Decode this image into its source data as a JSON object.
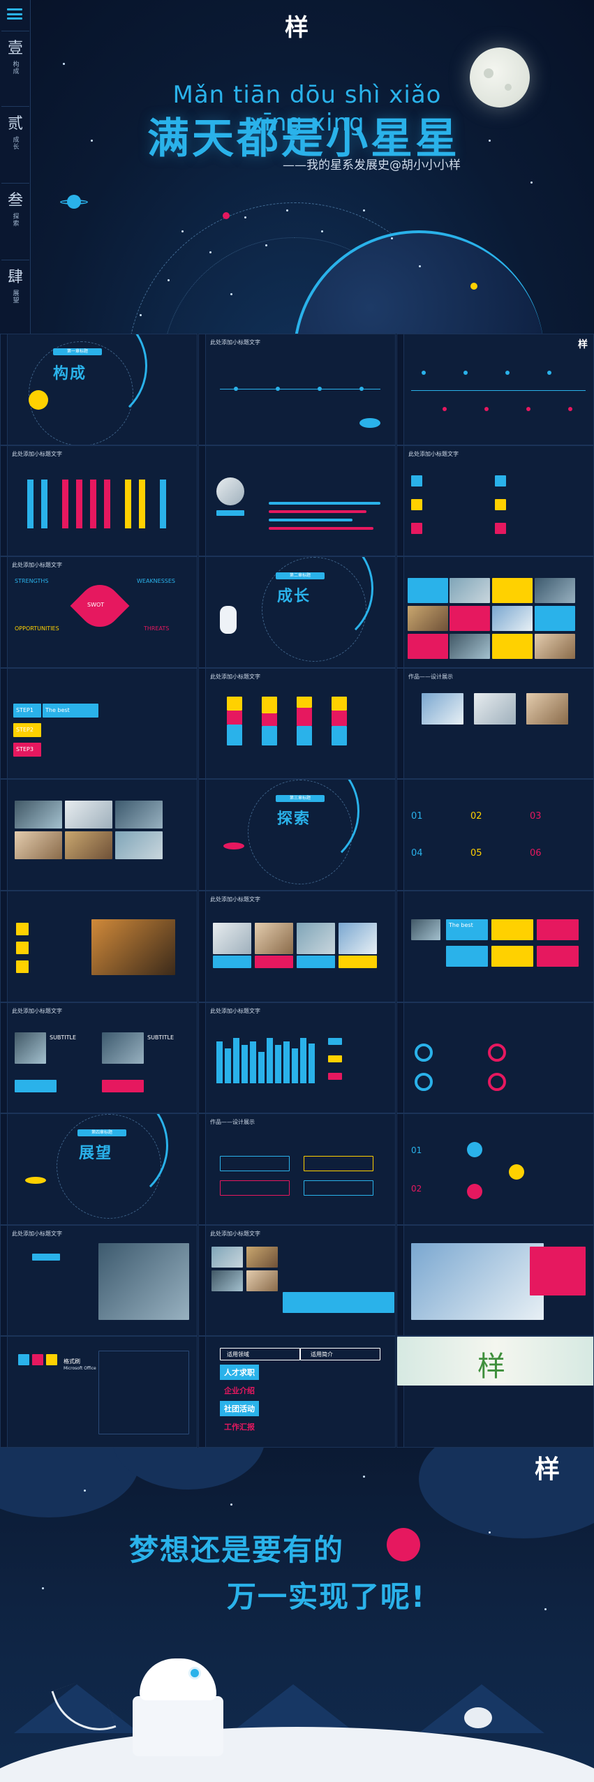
{
  "hero": {
    "logo": "样",
    "pinyin": "Mǎn tiān dōu shì xiǎo xīng xing",
    "title": "满天都是小星星",
    "subtitle": "——我的星系发展史@胡小小小样",
    "sidebar": [
      {
        "num": "壹",
        "label": "构成"
      },
      {
        "num": "贰",
        "label": "成长"
      },
      {
        "num": "叁",
        "label": "探索"
      },
      {
        "num": "肆",
        "label": "展望"
      }
    ]
  },
  "slides": {
    "common_title": "此处添加小标题文字",
    "logo": "样",
    "sections": [
      {
        "badge": "第一章标题",
        "word": "构成"
      },
      {
        "badge": "第二章标题",
        "word": "成长"
      },
      {
        "badge": "第三章标题",
        "word": "探索"
      },
      {
        "badge": "第四章标题",
        "word": "展望"
      }
    ],
    "swot": {
      "s": "STRENGTHS",
      "w": "WEAKNESSES",
      "o": "OPPORTUNITIES",
      "t": "THREATS",
      "center": "SWOT"
    },
    "best": "The best",
    "steps": [
      "STEP1",
      "STEP2",
      "STEP3"
    ],
    "numbers": [
      "01",
      "02",
      "03",
      "04",
      "05",
      "06"
    ],
    "subtitle_label": "SUBTITLE",
    "work": "作品——设计展示",
    "table": {
      "head_left": "适用领域",
      "head_right": "适用简介",
      "rows": [
        "人才求职",
        "企业介绍",
        "社团活动",
        "工作汇报"
      ]
    },
    "font_label": "格式刷",
    "font_meta": "Microsoft Office"
  },
  "final": {
    "logo": "样",
    "line1": "梦想还是要有的",
    "line2": "万一实现了呢!"
  },
  "colors": {
    "blue": "#2ab2ea",
    "yellow": "#ffd100",
    "pink": "#e6185f",
    "navy": "#0d1e3a"
  }
}
